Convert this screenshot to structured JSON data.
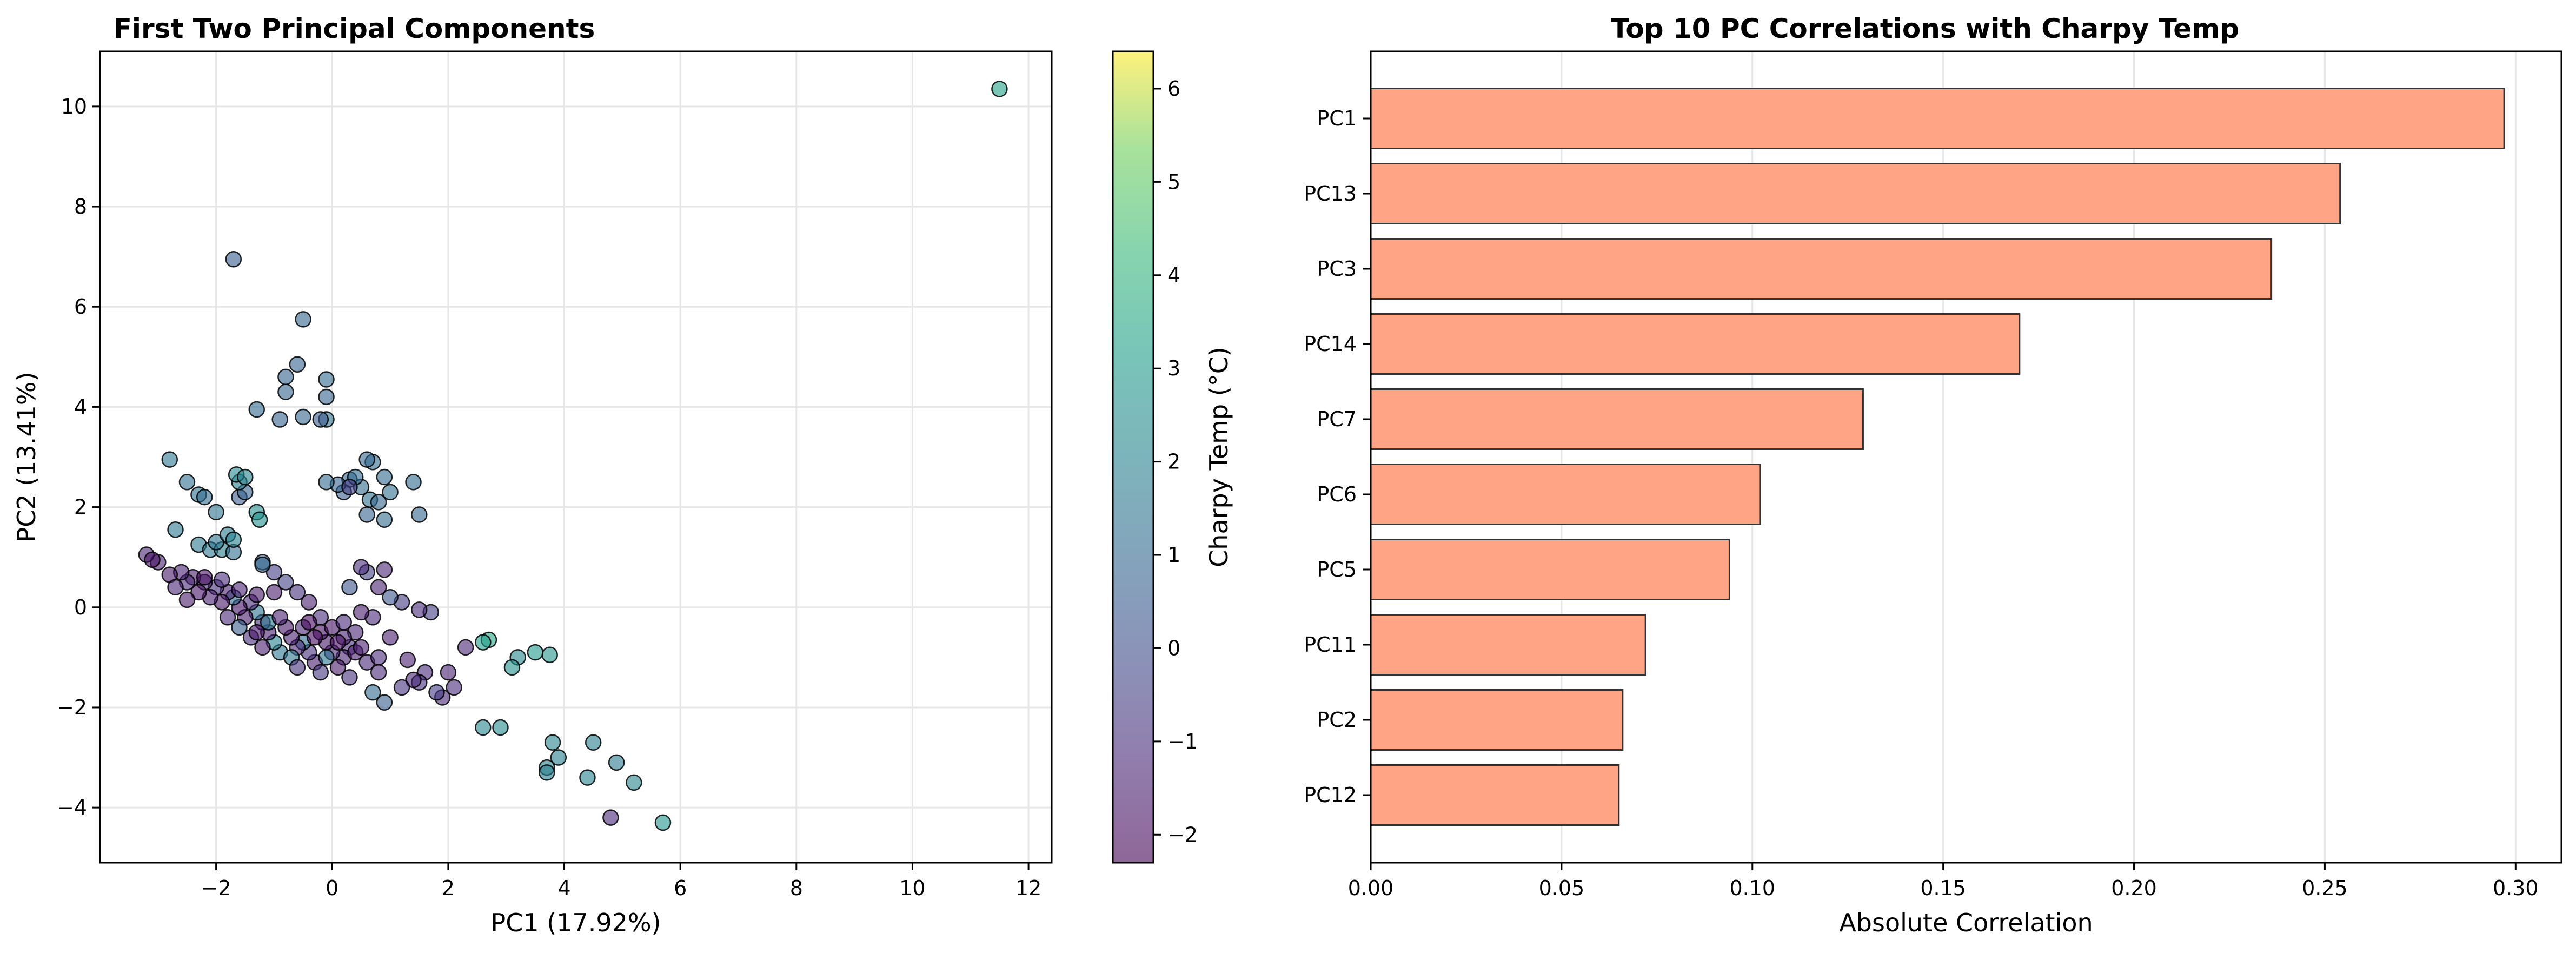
{
  "chart_data": [
    {
      "type": "scatter",
      "title": "First Two Principal Components",
      "xlabel": "PC1 (17.92%)",
      "ylabel": "PC2 (13.41%)",
      "xlim": [
        -4.0,
        12.4
      ],
      "ylim": [
        -5.1,
        11.1
      ],
      "xticks": [
        -2,
        0,
        2,
        4,
        6,
        8,
        10,
        12
      ],
      "yticks": [
        -4,
        -2,
        0,
        2,
        4,
        6,
        8,
        10
      ],
      "tick_labels_x": [
        "−2",
        "0",
        "2",
        "4",
        "6",
        "8",
        "10",
        "12"
      ],
      "tick_labels_y": [
        "−4",
        "−2",
        "0",
        "2",
        "4",
        "6",
        "8",
        "10"
      ],
      "grid": true,
      "colormap": "viridis",
      "colorbar": {
        "label": "Charpy Temp (°C)",
        "min": -2.3,
        "max": 6.4,
        "ticks": [
          -2,
          -1,
          0,
          1,
          2,
          3,
          4,
          5,
          6
        ],
        "tick_labels": [
          "−2",
          "−1",
          "0",
          "1",
          "2",
          "3",
          "4",
          "5",
          "6"
        ]
      },
      "points": [
        {
          "x": 11.5,
          "y": 10.35,
          "c": 3.3
        },
        {
          "x": 5.7,
          "y": -4.3,
          "c": 2.8
        },
        {
          "x": 4.8,
          "y": -4.2,
          "c": -1.2
        },
        {
          "x": 5.2,
          "y": -3.5,
          "c": 2.1
        },
        {
          "x": 4.9,
          "y": -3.1,
          "c": 1.7
        },
        {
          "x": 4.4,
          "y": -3.4,
          "c": 2.0
        },
        {
          "x": 4.5,
          "y": -2.7,
          "c": 1.9
        },
        {
          "x": 3.7,
          "y": -3.2,
          "c": 2.0
        },
        {
          "x": 3.7,
          "y": -3.3,
          "c": 1.9
        },
        {
          "x": 3.8,
          "y": -2.7,
          "c": 2.1
        },
        {
          "x": 3.9,
          "y": -3.0,
          "c": 1.9
        },
        {
          "x": 2.9,
          "y": -2.4,
          "c": 2.4
        },
        {
          "x": 2.6,
          "y": -2.4,
          "c": 2.2
        },
        {
          "x": 3.75,
          "y": -0.95,
          "c": 2.8
        },
        {
          "x": 3.5,
          "y": -0.9,
          "c": 3.0
        },
        {
          "x": 3.2,
          "y": -1.0,
          "c": 2.2
        },
        {
          "x": 3.1,
          "y": -1.2,
          "c": 2.6
        },
        {
          "x": 2.7,
          "y": -0.65,
          "c": 3.4
        },
        {
          "x": 2.6,
          "y": -0.7,
          "c": 3.1
        },
        {
          "x": 2.3,
          "y": -0.8,
          "c": -1.3
        },
        {
          "x": 2.0,
          "y": -1.3,
          "c": -1.4
        },
        {
          "x": 2.1,
          "y": -1.6,
          "c": -1.1
        },
        {
          "x": 1.9,
          "y": -1.8,
          "c": -1.3
        },
        {
          "x": 1.8,
          "y": -1.7,
          "c": -0.6
        },
        {
          "x": 1.6,
          "y": -1.3,
          "c": -1.2
        },
        {
          "x": 1.5,
          "y": -1.5,
          "c": -1.0
        },
        {
          "x": 1.4,
          "y": -1.45,
          "c": -1.3
        },
        {
          "x": 1.3,
          "y": -1.05,
          "c": -1.5
        },
        {
          "x": 1.2,
          "y": -1.6,
          "c": -0.9
        },
        {
          "x": 0.9,
          "y": -1.9,
          "c": 0.6
        },
        {
          "x": 0.7,
          "y": -1.7,
          "c": 1.0
        },
        {
          "x": 0.8,
          "y": -1.3,
          "c": -1.2
        },
        {
          "x": 1.7,
          "y": -0.1,
          "c": -0.5
        },
        {
          "x": 1.5,
          "y": -0.05,
          "c": -1.1
        },
        {
          "x": 1.2,
          "y": 0.1,
          "c": -0.6
        },
        {
          "x": 1.0,
          "y": 0.2,
          "c": 0.3
        },
        {
          "x": 0.8,
          "y": 0.4,
          "c": -1.4
        },
        {
          "x": 0.6,
          "y": 0.7,
          "c": -0.4
        },
        {
          "x": 0.5,
          "y": 0.8,
          "c": -1.1
        },
        {
          "x": 0.9,
          "y": 0.75,
          "c": -1.3
        },
        {
          "x": 0.3,
          "y": 0.4,
          "c": 0.2
        },
        {
          "x": 1.0,
          "y": -0.6,
          "c": -1.5
        },
        {
          "x": 0.7,
          "y": -0.2,
          "c": -1.2
        },
        {
          "x": 0.5,
          "y": -0.1,
          "c": -1.6
        },
        {
          "x": 0.4,
          "y": -0.5,
          "c": -1.3
        },
        {
          "x": 0.3,
          "y": -0.8,
          "c": -1.1
        },
        {
          "x": 0.2,
          "y": -1.0,
          "c": -1.4
        },
        {
          "x": 0.1,
          "y": -1.2,
          "c": -1.6
        },
        {
          "x": 0.0,
          "y": -0.9,
          "c": -1.2
        },
        {
          "x": -0.1,
          "y": -0.7,
          "c": -1.7
        },
        {
          "x": -0.2,
          "y": -0.5,
          "c": -1.9
        },
        {
          "x": -0.3,
          "y": -1.1,
          "c": -1.5
        },
        {
          "x": -0.4,
          "y": -0.9,
          "c": -1.0
        },
        {
          "x": -0.5,
          "y": -0.7,
          "c": 1.2
        },
        {
          "x": -0.6,
          "y": -0.8,
          "c": -1.2
        },
        {
          "x": -0.7,
          "y": -0.6,
          "c": -1.4
        },
        {
          "x": -0.8,
          "y": -0.4,
          "c": -1.7
        },
        {
          "x": -0.9,
          "y": -0.9,
          "c": 1.6
        },
        {
          "x": -1.0,
          "y": -0.7,
          "c": 2.0
        },
        {
          "x": -1.1,
          "y": -0.5,
          "c": -1.4
        },
        {
          "x": -1.2,
          "y": -0.3,
          "c": -1.0
        },
        {
          "x": -1.3,
          "y": -0.1,
          "c": 1.4
        },
        {
          "x": -1.4,
          "y": 0.1,
          "c": -1.2
        },
        {
          "x": -1.5,
          "y": -0.2,
          "c": -1.6
        },
        {
          "x": -1.6,
          "y": 0.0,
          "c": -1.8
        },
        {
          "x": -1.7,
          "y": 0.2,
          "c": 1.1
        },
        {
          "x": -1.8,
          "y": 0.3,
          "c": -1.4
        },
        {
          "x": -1.9,
          "y": 0.1,
          "c": -1.7
        },
        {
          "x": -2.0,
          "y": 0.4,
          "c": -1.0
        },
        {
          "x": -2.1,
          "y": 0.2,
          "c": -1.5
        },
        {
          "x": -2.2,
          "y": 0.5,
          "c": -1.3
        },
        {
          "x": -2.3,
          "y": 0.3,
          "c": -1.8
        },
        {
          "x": -2.4,
          "y": 0.6,
          "c": -1.6
        },
        {
          "x": -2.5,
          "y": 0.5,
          "c": -1.2
        },
        {
          "x": -2.6,
          "y": 0.7,
          "c": -1.4
        },
        {
          "x": -2.8,
          "y": 0.65,
          "c": -1.7
        },
        {
          "x": -3.0,
          "y": 0.9,
          "c": -1.5
        },
        {
          "x": -3.2,
          "y": 1.05,
          "c": -1.3
        },
        {
          "x": -3.1,
          "y": 0.95,
          "c": -1.9
        },
        {
          "x": -1.0,
          "y": 0.7,
          "c": -0.5
        },
        {
          "x": -1.2,
          "y": 0.9,
          "c": 0.6
        },
        {
          "x": -0.8,
          "y": 0.5,
          "c": -0.4
        },
        {
          "x": -0.6,
          "y": 0.3,
          "c": -1.0
        },
        {
          "x": -0.4,
          "y": 0.1,
          "c": -1.5
        },
        {
          "x": -0.2,
          "y": -0.2,
          "c": -1.1
        },
        {
          "x": 0.0,
          "y": -0.4,
          "c": -1.8
        },
        {
          "x": 0.2,
          "y": -0.6,
          "c": -1.4
        },
        {
          "x": 0.4,
          "y": -0.9,
          "c": -1.6
        },
        {
          "x": 0.6,
          "y": -1.1,
          "c": -1.2
        },
        {
          "x": -0.3,
          "y": -0.6,
          "c": -2.0
        },
        {
          "x": -0.5,
          "y": -0.4,
          "c": -1.3
        },
        {
          "x": -1.4,
          "y": -0.6,
          "c": -1.1
        },
        {
          "x": -1.6,
          "y": -0.4,
          "c": 0.5
        },
        {
          "x": -1.8,
          "y": -0.2,
          "c": -1.2
        },
        {
          "x": -1.1,
          "y": -0.3,
          "c": 1.8
        },
        {
          "x": -0.7,
          "y": -1.0,
          "c": 1.5
        },
        {
          "x": -0.2,
          "y": -1.3,
          "c": -0.8
        },
        {
          "x": 0.3,
          "y": -1.4,
          "c": -1.0
        },
        {
          "x": -2.8,
          "y": 2.95,
          "c": 1.5
        },
        {
          "x": -2.5,
          "y": 2.5,
          "c": 1.2
        },
        {
          "x": -2.3,
          "y": 2.25,
          "c": 1.3
        },
        {
          "x": -2.2,
          "y": 2.2,
          "c": 1.1
        },
        {
          "x": -2.0,
          "y": 1.9,
          "c": 1.4
        },
        {
          "x": -2.7,
          "y": 1.55,
          "c": 1.6
        },
        {
          "x": -2.3,
          "y": 1.25,
          "c": 1.7
        },
        {
          "x": -2.1,
          "y": 1.15,
          "c": 1.6
        },
        {
          "x": -1.9,
          "y": 1.15,
          "c": 1.9
        },
        {
          "x": -1.7,
          "y": 1.1,
          "c": 1.3
        },
        {
          "x": -2.0,
          "y": 1.3,
          "c": 1.5
        },
        {
          "x": -1.8,
          "y": 1.45,
          "c": 1.8
        },
        {
          "x": -1.7,
          "y": 1.35,
          "c": 2.0
        },
        {
          "x": -1.6,
          "y": 2.2,
          "c": 0.4
        },
        {
          "x": -1.5,
          "y": 2.3,
          "c": 0.8
        },
        {
          "x": -1.6,
          "y": 2.5,
          "c": 1.9
        },
        {
          "x": -1.65,
          "y": 2.65,
          "c": 2.3
        },
        {
          "x": -1.5,
          "y": 2.6,
          "c": 2.1
        },
        {
          "x": -1.3,
          "y": 1.9,
          "c": 2.5
        },
        {
          "x": -1.25,
          "y": 1.75,
          "c": 2.6
        },
        {
          "x": -1.2,
          "y": 0.85,
          "c": 0.9
        },
        {
          "x": -1.7,
          "y": 6.95,
          "c": 0.6
        },
        {
          "x": -0.5,
          "y": 5.75,
          "c": 0.9
        },
        {
          "x": -0.6,
          "y": 4.85,
          "c": 0.8
        },
        {
          "x": -0.8,
          "y": 4.6,
          "c": 0.7
        },
        {
          "x": -0.1,
          "y": 4.55,
          "c": 1.0
        },
        {
          "x": -0.8,
          "y": 4.3,
          "c": 0.9
        },
        {
          "x": -1.3,
          "y": 3.95,
          "c": 1.0
        },
        {
          "x": -0.1,
          "y": 4.2,
          "c": 0.8
        },
        {
          "x": -0.5,
          "y": 3.8,
          "c": 0.9
        },
        {
          "x": -0.9,
          "y": 3.75,
          "c": 0.7
        },
        {
          "x": -0.1,
          "y": 3.75,
          "c": 1.6
        },
        {
          "x": -0.2,
          "y": 3.75,
          "c": 0.4
        },
        {
          "x": 0.7,
          "y": 2.9,
          "c": 1.1
        },
        {
          "x": 0.6,
          "y": 2.95,
          "c": 0.9
        },
        {
          "x": 0.9,
          "y": 2.6,
          "c": 1.0
        },
        {
          "x": 1.0,
          "y": 2.3,
          "c": 1.2
        },
        {
          "x": 0.3,
          "y": 2.55,
          "c": 0.9
        },
        {
          "x": 0.5,
          "y": 2.4,
          "c": 1.1
        },
        {
          "x": 0.2,
          "y": 2.3,
          "c": 0.5
        },
        {
          "x": 0.1,
          "y": 2.45,
          "c": 0.8
        },
        {
          "x": -0.1,
          "y": 2.5,
          "c": 1.0
        },
        {
          "x": 0.65,
          "y": 2.15,
          "c": 1.2
        },
        {
          "x": 0.8,
          "y": 2.1,
          "c": 0.9
        },
        {
          "x": 0.4,
          "y": 2.6,
          "c": 1.0
        },
        {
          "x": 0.6,
          "y": 1.85,
          "c": 0.8
        },
        {
          "x": 0.9,
          "y": 1.75,
          "c": 1.1
        },
        {
          "x": 1.4,
          "y": 2.5,
          "c": 1.0
        },
        {
          "x": 1.5,
          "y": 1.85,
          "c": 0.9
        },
        {
          "x": 0.3,
          "y": 2.4,
          "c": -0.4
        },
        {
          "x": -1.0,
          "y": 0.3,
          "c": -1.6
        },
        {
          "x": -1.3,
          "y": -0.5,
          "c": -1.8
        },
        {
          "x": -0.9,
          "y": -0.2,
          "c": -1.4
        },
        {
          "x": -0.4,
          "y": -0.3,
          "c": -2.1
        },
        {
          "x": 0.1,
          "y": -0.7,
          "c": -1.9
        },
        {
          "x": 0.5,
          "y": -0.8,
          "c": -1.5
        },
        {
          "x": 0.8,
          "y": -1.0,
          "c": -1.1
        },
        {
          "x": -2.5,
          "y": 0.15,
          "c": -1.6
        },
        {
          "x": -2.2,
          "y": 0.6,
          "c": -1.9
        },
        {
          "x": -1.9,
          "y": 0.55,
          "c": -1.1
        },
        {
          "x": -1.6,
          "y": 0.35,
          "c": -1.4
        },
        {
          "x": -1.3,
          "y": 0.25,
          "c": -1.7
        },
        {
          "x": -2.7,
          "y": 0.4,
          "c": -1.3
        },
        {
          "x": -0.6,
          "y": -1.2,
          "c": -0.9
        },
        {
          "x": -0.1,
          "y": -1.0,
          "c": 1.4
        },
        {
          "x": 0.2,
          "y": -0.3,
          "c": -1.2
        },
        {
          "x": -1.2,
          "y": -0.8,
          "c": -1.5
        }
      ]
    },
    {
      "type": "bar",
      "orientation": "horizontal",
      "title": "Top 10 PC Correlations with Charpy Temp",
      "xlabel": "Absolute Correlation",
      "ylabel": "",
      "xlim": [
        0,
        0.312
      ],
      "xticks": [
        0.0,
        0.05,
        0.1,
        0.15,
        0.2,
        0.25,
        0.3
      ],
      "tick_labels_x": [
        "0.00",
        "0.05",
        "0.10",
        "0.15",
        "0.20",
        "0.25",
        "0.30"
      ],
      "grid": true,
      "bar_color": "#ffa485",
      "categories": [
        "PC1",
        "PC13",
        "PC3",
        "PC14",
        "PC7",
        "PC6",
        "PC5",
        "PC11",
        "PC2",
        "PC12"
      ],
      "values": [
        0.297,
        0.254,
        0.236,
        0.17,
        0.129,
        0.102,
        0.094,
        0.072,
        0.066,
        0.065
      ]
    }
  ]
}
